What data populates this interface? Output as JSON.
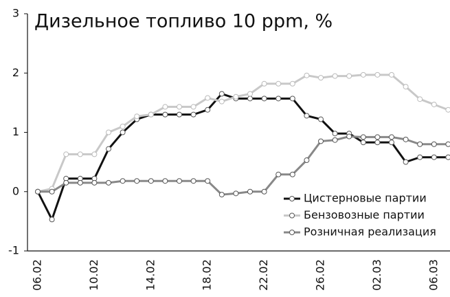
{
  "chart_data": {
    "type": "line",
    "title": "Дизельное топливо 10 ppm, %",
    "categories": [
      "06.02",
      null,
      null,
      null,
      "10.02",
      null,
      null,
      null,
      "14.02",
      null,
      null,
      null,
      "18.02",
      null,
      null,
      null,
      "22.02",
      null,
      null,
      null,
      "26.02",
      null,
      null,
      null,
      "02.03",
      null,
      null,
      null,
      "06.03",
      null
    ],
    "series": [
      {
        "name": "Цистерновые партии",
        "color": "#111111",
        "values": [
          0,
          -0.47,
          0.22,
          0.22,
          0.22,
          0.72,
          1.0,
          1.22,
          1.3,
          1.3,
          1.3,
          1.3,
          1.38,
          1.65,
          1.57,
          1.57,
          1.57,
          1.57,
          1.57,
          1.28,
          1.22,
          0.98,
          0.98,
          0.83,
          0.83,
          0.83,
          0.5,
          0.58,
          0.58,
          0.58
        ]
      },
      {
        "name": "Бензовозные партии",
        "color": "#c8c8c8",
        "values": [
          0,
          0.05,
          0.63,
          0.63,
          0.63,
          1.0,
          1.1,
          1.27,
          1.3,
          1.43,
          1.43,
          1.43,
          1.58,
          1.52,
          1.6,
          1.65,
          1.82,
          1.82,
          1.82,
          1.96,
          1.92,
          1.95,
          1.95,
          1.97,
          1.97,
          1.97,
          1.77,
          1.56,
          1.47,
          1.38
        ]
      },
      {
        "name": "Розничная реализация",
        "color": "#888888",
        "values": [
          0,
          0,
          0.15,
          0.15,
          0.15,
          0.15,
          0.18,
          0.18,
          0.18,
          0.18,
          0.18,
          0.18,
          0.18,
          -0.05,
          -0.03,
          0,
          0,
          0.29,
          0.29,
          0.53,
          0.85,
          0.87,
          0.93,
          0.92,
          0.92,
          0.92,
          0.88,
          0.8,
          0.8,
          0.8
        ]
      }
    ],
    "ylim": [
      -1,
      3
    ],
    "yticks": [
      -1,
      0,
      1,
      2,
      3
    ],
    "grid": false,
    "legend": "lower right"
  }
}
